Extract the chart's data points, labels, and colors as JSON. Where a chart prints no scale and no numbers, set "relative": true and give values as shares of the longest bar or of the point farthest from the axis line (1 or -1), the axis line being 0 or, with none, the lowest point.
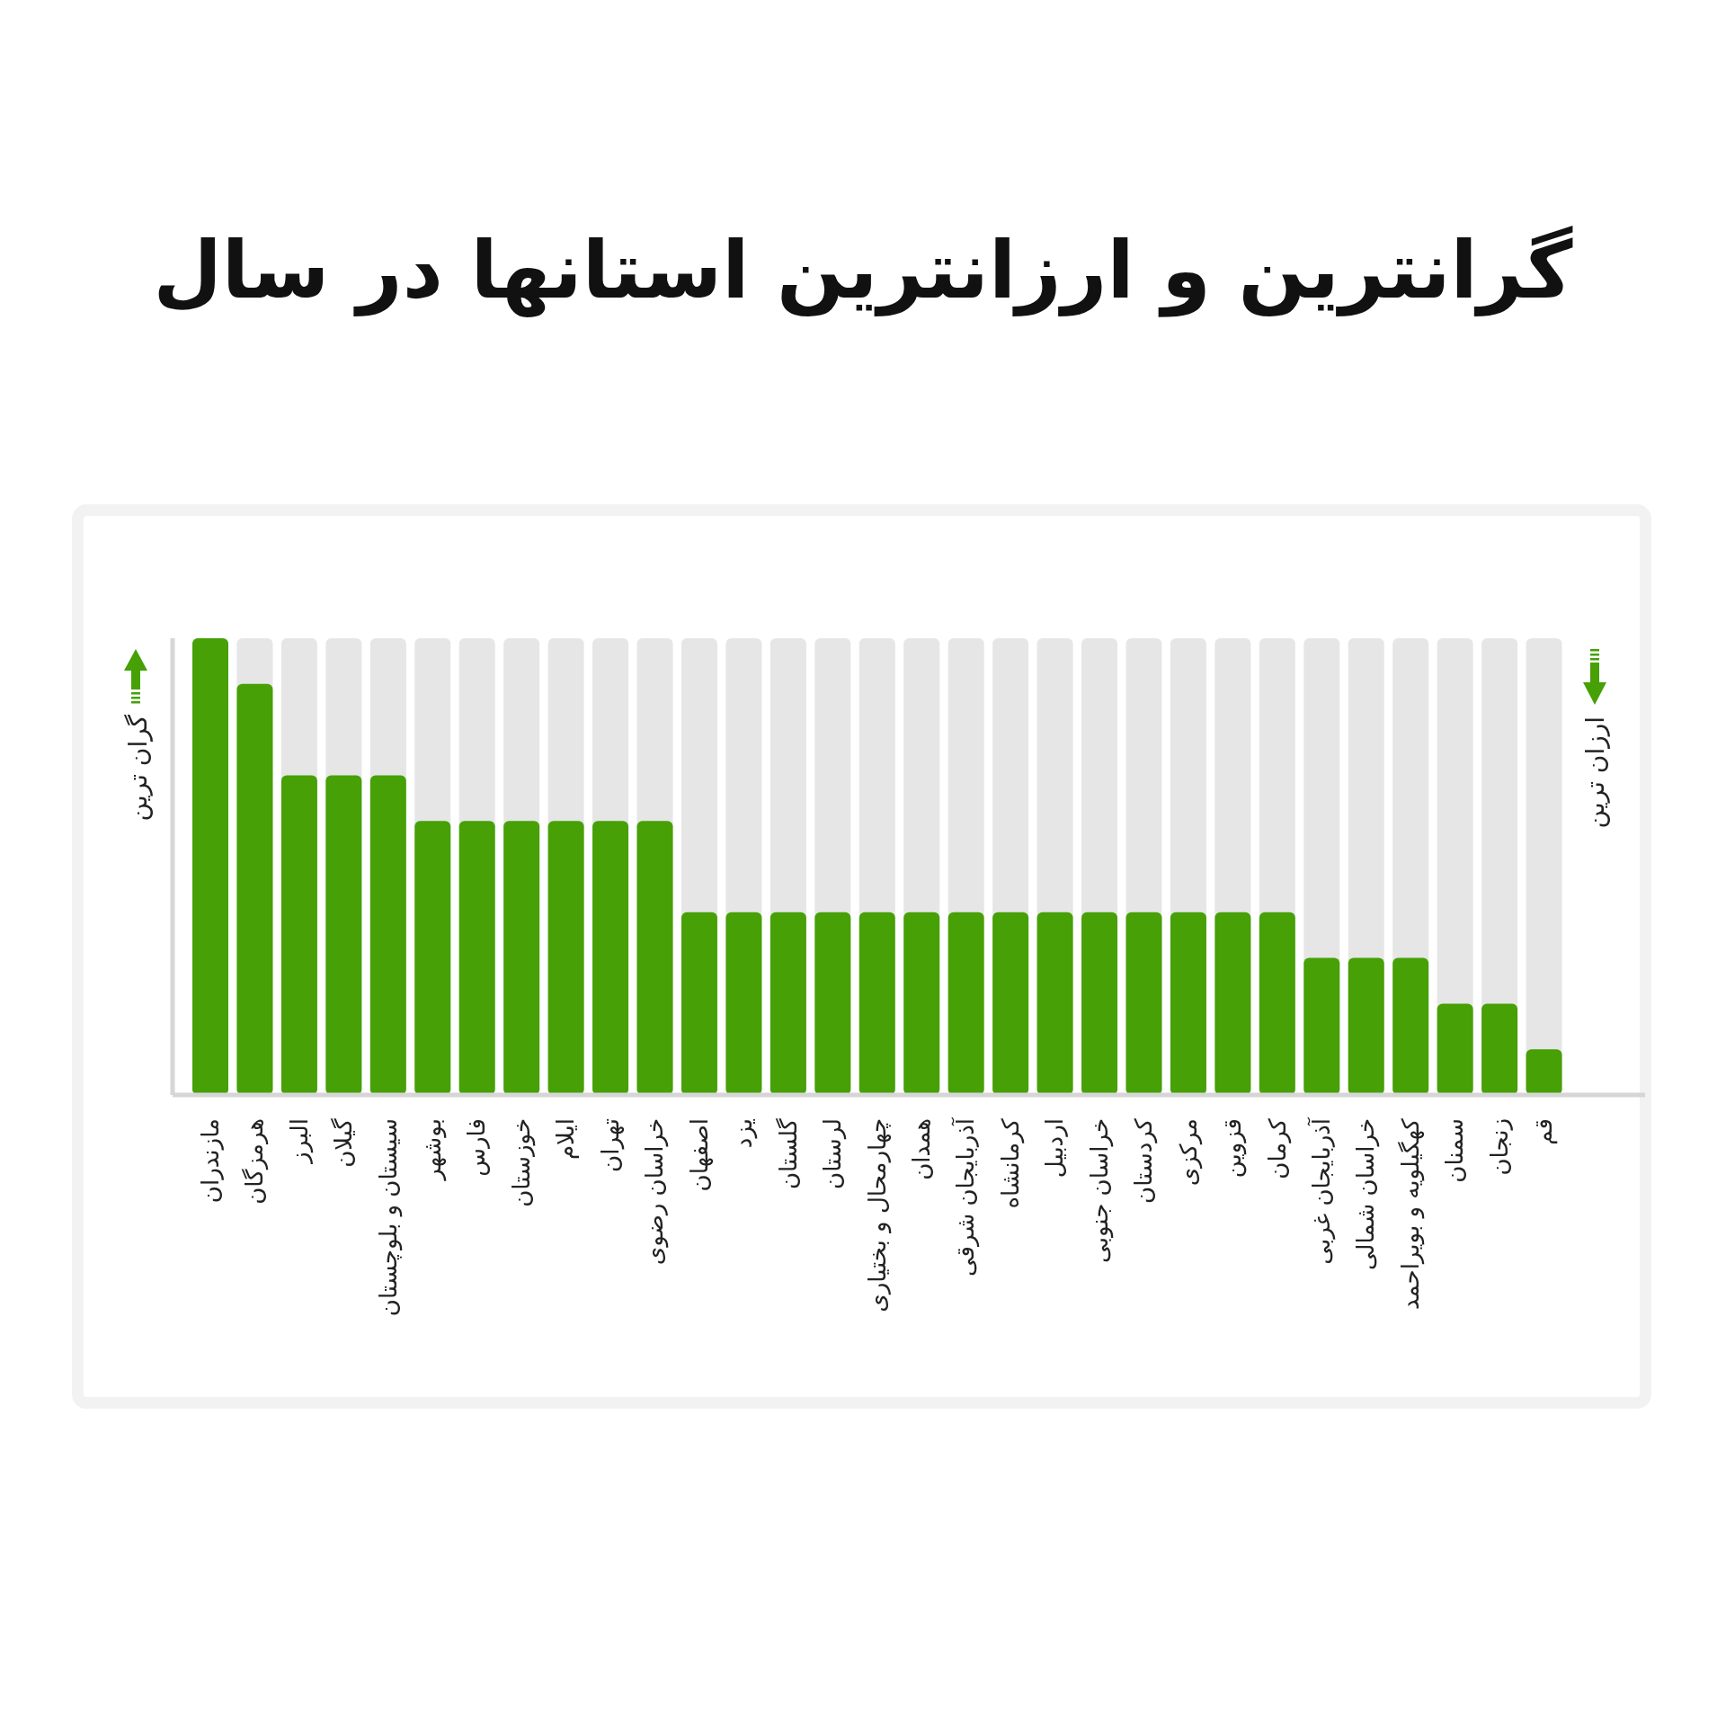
{
  "chart_data": {
    "type": "bar",
    "title": "گرانترین و ارزانترین استانها در سال",
    "ylabel": "گران ترین",
    "y2label": "ارزان ترین",
    "categories": [
      "مازندران",
      "هرمزگان",
      "البرز",
      "گیلان",
      "سیستان و بلوچستان",
      "بوشهر",
      "فارس",
      "خوزستان",
      "ایلام",
      "تهران",
      "خراسان رضوی",
      "اصفهان",
      "یزد",
      "گلستان",
      "لرستان",
      "چهارمحال و بختیاری",
      "همدان",
      "آذربایجان شرقی",
      "کرمانشاه",
      "اردبیل",
      "خراسان جنوبی",
      "کردستان",
      "مرکزی",
      "قزوین",
      "کرمان",
      "آذربایجان غربی",
      "خراسان شمالی",
      "کهگیلویه و بویراحمد",
      "سمنان",
      "زنجان",
      "قم"
    ],
    "values": [
      1,
      0.9,
      0.7,
      0.7,
      0.7,
      0.6,
      0.6,
      0.6,
      0.6,
      0.6,
      0.6,
      0.4,
      0.4,
      0.4,
      0.4,
      0.4,
      0.4,
      0.4,
      0.4,
      0.4,
      0.4,
      0.4,
      0.4,
      0.4,
      0.4,
      0.3,
      0.3,
      0.3,
      0.2,
      0.2,
      0.1
    ],
    "color": "#46a006",
    "relative": true
  }
}
